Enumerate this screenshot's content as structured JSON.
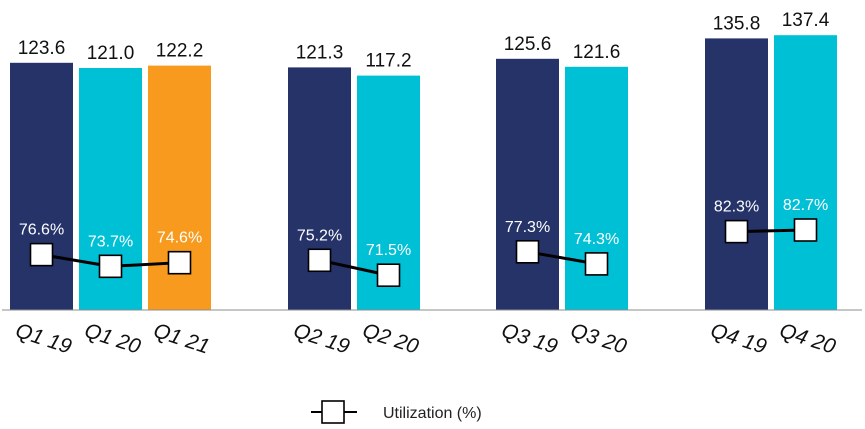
{
  "chart_data": {
    "type": "bar",
    "groups": [
      {
        "bars": [
          {
            "label": "Q1 19",
            "value": 123.6,
            "value_text": "123.6",
            "util": 76.6,
            "util_text": "76.6%",
            "color": "#263369"
          },
          {
            "label": "Q1 20",
            "value": 121.0,
            "value_text": "121.0",
            "util": 73.7,
            "util_text": "73.7%",
            "color": "#00C0D6"
          },
          {
            "label": "Q1 21",
            "value": 122.2,
            "value_text": "122.2",
            "util": 74.6,
            "util_text": "74.6%",
            "color": "#F79A1E"
          }
        ]
      },
      {
        "bars": [
          {
            "label": "Q2 19",
            "value": 121.3,
            "value_text": "121.3",
            "util": 75.2,
            "util_text": "75.2%",
            "color": "#263369"
          },
          {
            "label": "Q2 20",
            "value": 117.2,
            "value_text": "117.2",
            "util": 71.5,
            "util_text": "71.5%",
            "color": "#00C0D6"
          }
        ]
      },
      {
        "bars": [
          {
            "label": "Q3 19",
            "value": 125.6,
            "value_text": "125.6",
            "util": 77.3,
            "util_text": "77.3%",
            "color": "#263369"
          },
          {
            "label": "Q3 20",
            "value": 121.6,
            "value_text": "121.6",
            "util": 74.3,
            "util_text": "74.3%",
            "color": "#00C0D6"
          }
        ]
      },
      {
        "bars": [
          {
            "label": "Q4 19",
            "value": 135.8,
            "value_text": "135.8",
            "util": 82.3,
            "util_text": "82.3%",
            "color": "#263369"
          },
          {
            "label": "Q4 20",
            "value": 137.4,
            "value_text": "137.4",
            "util": 82.7,
            "util_text": "82.7%",
            "color": "#00C0D6"
          }
        ]
      }
    ],
    "legend": {
      "label": "Utilization (%)",
      "position": "bottom"
    },
    "grid": false,
    "colors": {
      "dark_navy": "#263369",
      "cyan": "#00C0D6",
      "orange": "#F79A1E",
      "line": "#000000"
    }
  }
}
